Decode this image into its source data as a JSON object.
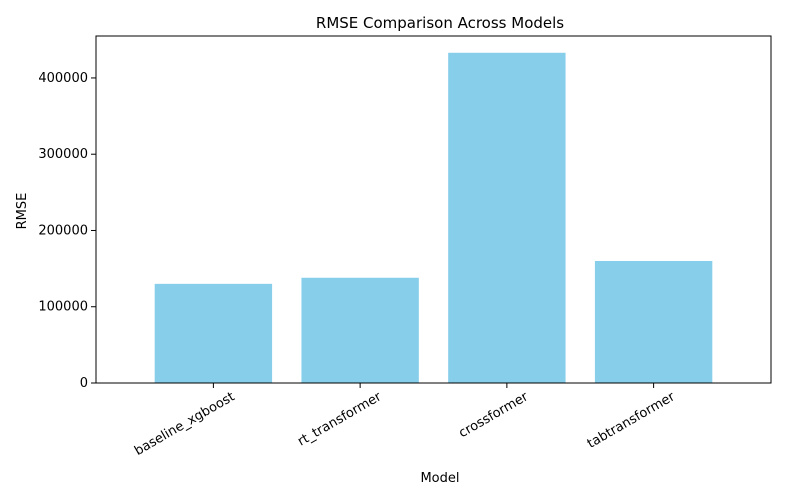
{
  "chart_data": {
    "type": "bar",
    "title": "RMSE Comparison Across Models",
    "xlabel": "Model",
    "ylabel": "RMSE",
    "categories": [
      "baseline_xgboost",
      "rt_transformer",
      "crossformer",
      "tabtransformer"
    ],
    "values": [
      130000,
      138000,
      433000,
      160000
    ],
    "ylim": [
      0,
      455000
    ],
    "yticks": [
      0,
      100000,
      200000,
      300000,
      400000
    ],
    "ytick_labels": [
      "0",
      "100000",
      "200000",
      "300000",
      "400000"
    ],
    "bar_color": "#87ceeb",
    "grid": false,
    "xtick_rotation_deg": 30
  }
}
